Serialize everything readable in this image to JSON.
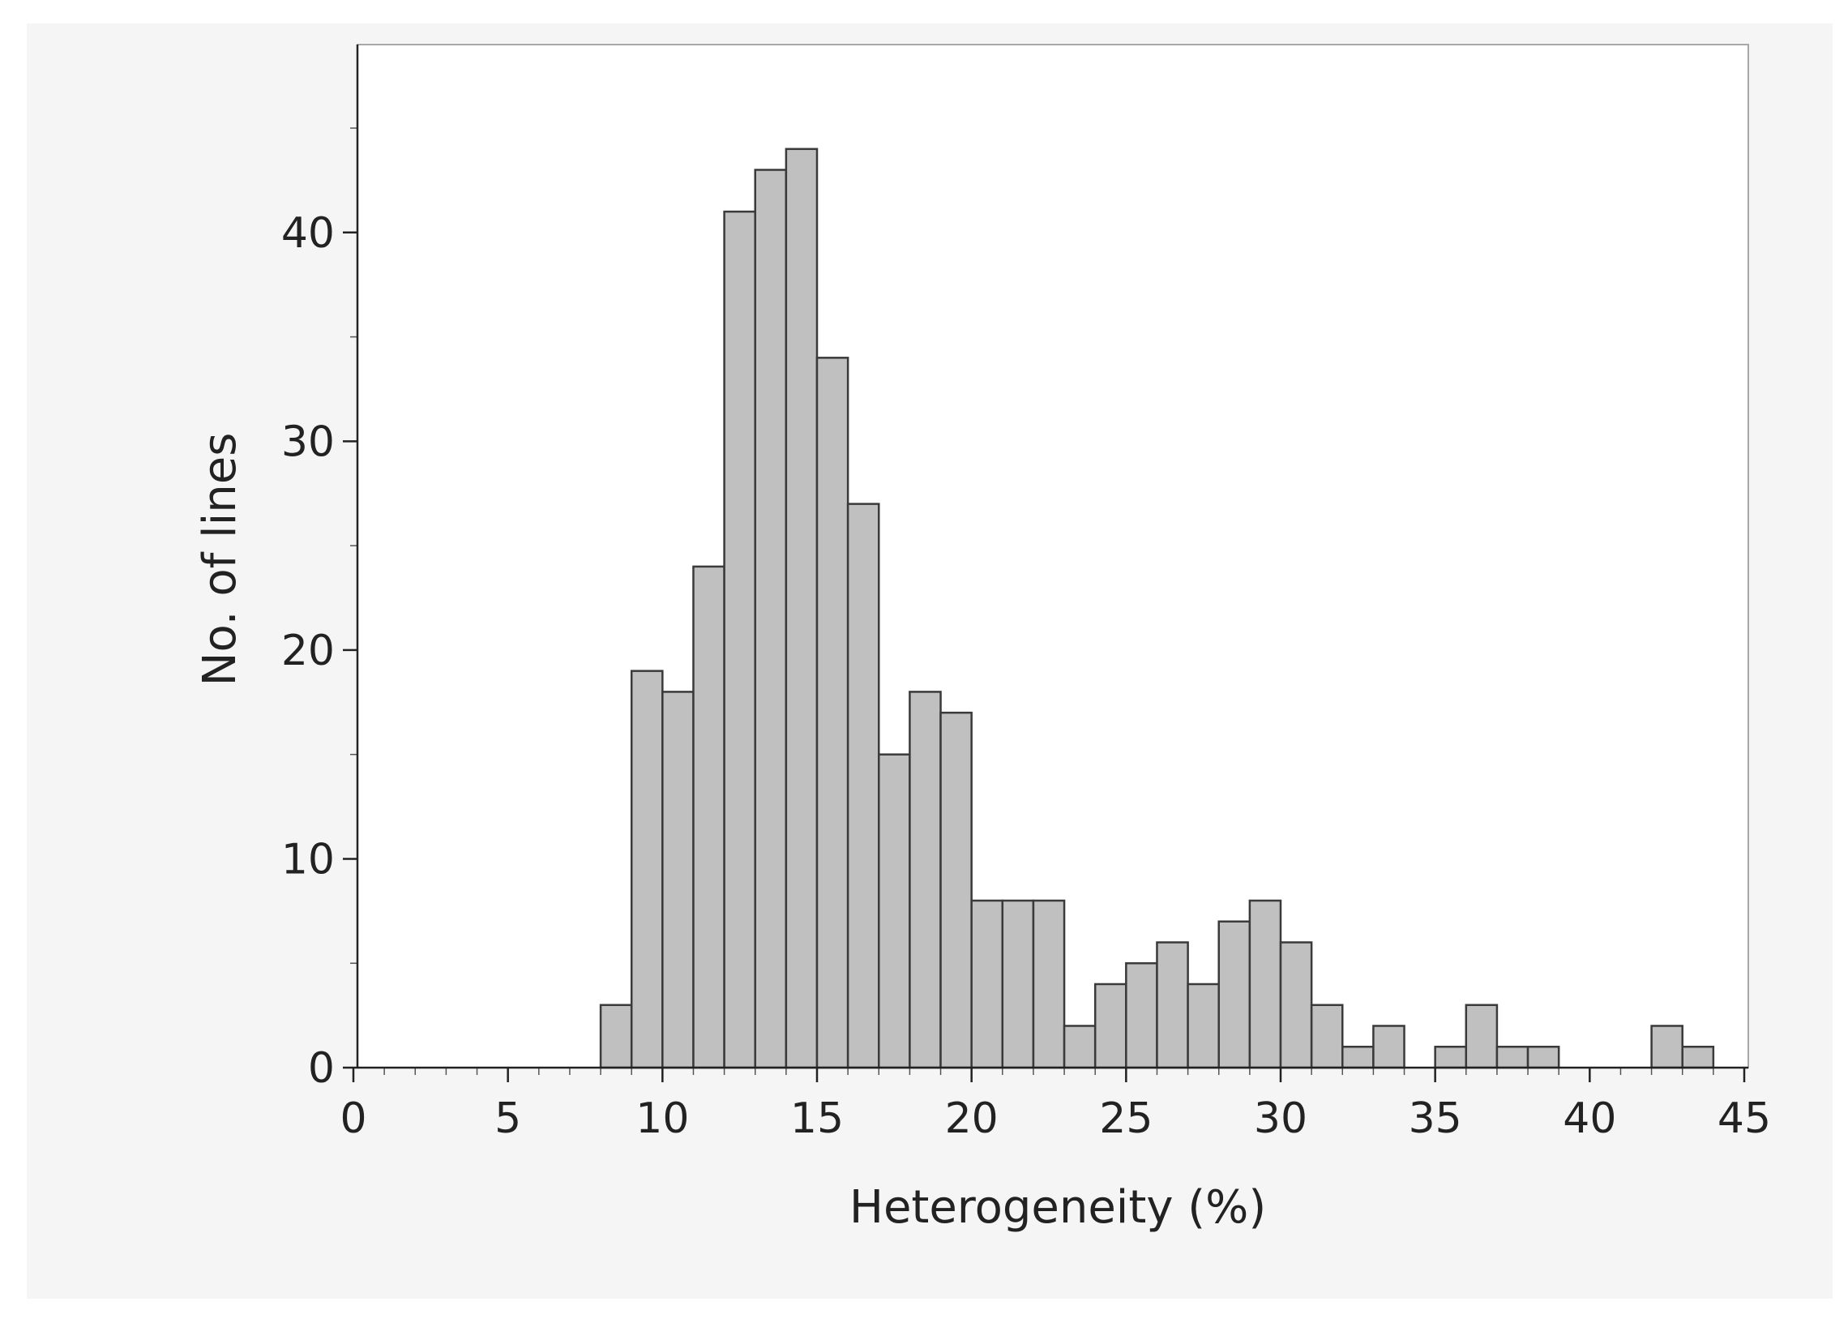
{
  "chart_data": {
    "type": "bar",
    "title": "",
    "xlabel": "Heterogeneity (%)",
    "ylabel": "No. of lines",
    "xlim": [
      0,
      45
    ],
    "ylim": [
      0,
      49
    ],
    "bin_width": 1,
    "bins": [
      {
        "x0": 8,
        "x1": 9,
        "count": 3
      },
      {
        "x0": 9,
        "x1": 10,
        "count": 19
      },
      {
        "x0": 10,
        "x1": 11,
        "count": 18
      },
      {
        "x0": 11,
        "x1": 12,
        "count": 24
      },
      {
        "x0": 12,
        "x1": 13,
        "count": 41
      },
      {
        "x0": 13,
        "x1": 14,
        "count": 43
      },
      {
        "x0": 14,
        "x1": 15,
        "count": 44
      },
      {
        "x0": 15,
        "x1": 16,
        "count": 34
      },
      {
        "x0": 16,
        "x1": 17,
        "count": 27
      },
      {
        "x0": 17,
        "x1": 18,
        "count": 15
      },
      {
        "x0": 18,
        "x1": 19,
        "count": 18
      },
      {
        "x0": 19,
        "x1": 20,
        "count": 17
      },
      {
        "x0": 20,
        "x1": 21,
        "count": 8
      },
      {
        "x0": 21,
        "x1": 22,
        "count": 8
      },
      {
        "x0": 22,
        "x1": 23,
        "count": 8
      },
      {
        "x0": 23,
        "x1": 24,
        "count": 2
      },
      {
        "x0": 24,
        "x1": 25,
        "count": 4
      },
      {
        "x0": 25,
        "x1": 26,
        "count": 5
      },
      {
        "x0": 26,
        "x1": 27,
        "count": 6
      },
      {
        "x0": 27,
        "x1": 28,
        "count": 4
      },
      {
        "x0": 28,
        "x1": 29,
        "count": 7
      },
      {
        "x0": 29,
        "x1": 30,
        "count": 8
      },
      {
        "x0": 30,
        "x1": 31,
        "count": 6
      },
      {
        "x0": 31,
        "x1": 32,
        "count": 3
      },
      {
        "x0": 32,
        "x1": 33,
        "count": 1
      },
      {
        "x0": 33,
        "x1": 34,
        "count": 2
      },
      {
        "x0": 35,
        "x1": 36,
        "count": 1
      },
      {
        "x0": 36,
        "x1": 37,
        "count": 3
      },
      {
        "x0": 37,
        "x1": 38,
        "count": 1
      },
      {
        "x0": 38,
        "x1": 39,
        "count": 1
      },
      {
        "x0": 42,
        "x1": 43,
        "count": 2
      },
      {
        "x0": 43,
        "x1": 44,
        "count": 1
      }
    ],
    "x_ticks": [
      "0",
      "5",
      "10",
      "15",
      "20",
      "25",
      "30",
      "35",
      "40",
      "45"
    ],
    "y_ticks": [
      "0",
      "10",
      "20",
      "30",
      "40"
    ],
    "x_minor_step": 1,
    "y_minor_step": 5,
    "grid": false,
    "legend": "none",
    "colors": {
      "bar_fill": "#c0c0c0",
      "bar_edge": "#3a3a3a",
      "panel_background": "#f5f5f5",
      "plot_background": "#ffffff"
    }
  }
}
